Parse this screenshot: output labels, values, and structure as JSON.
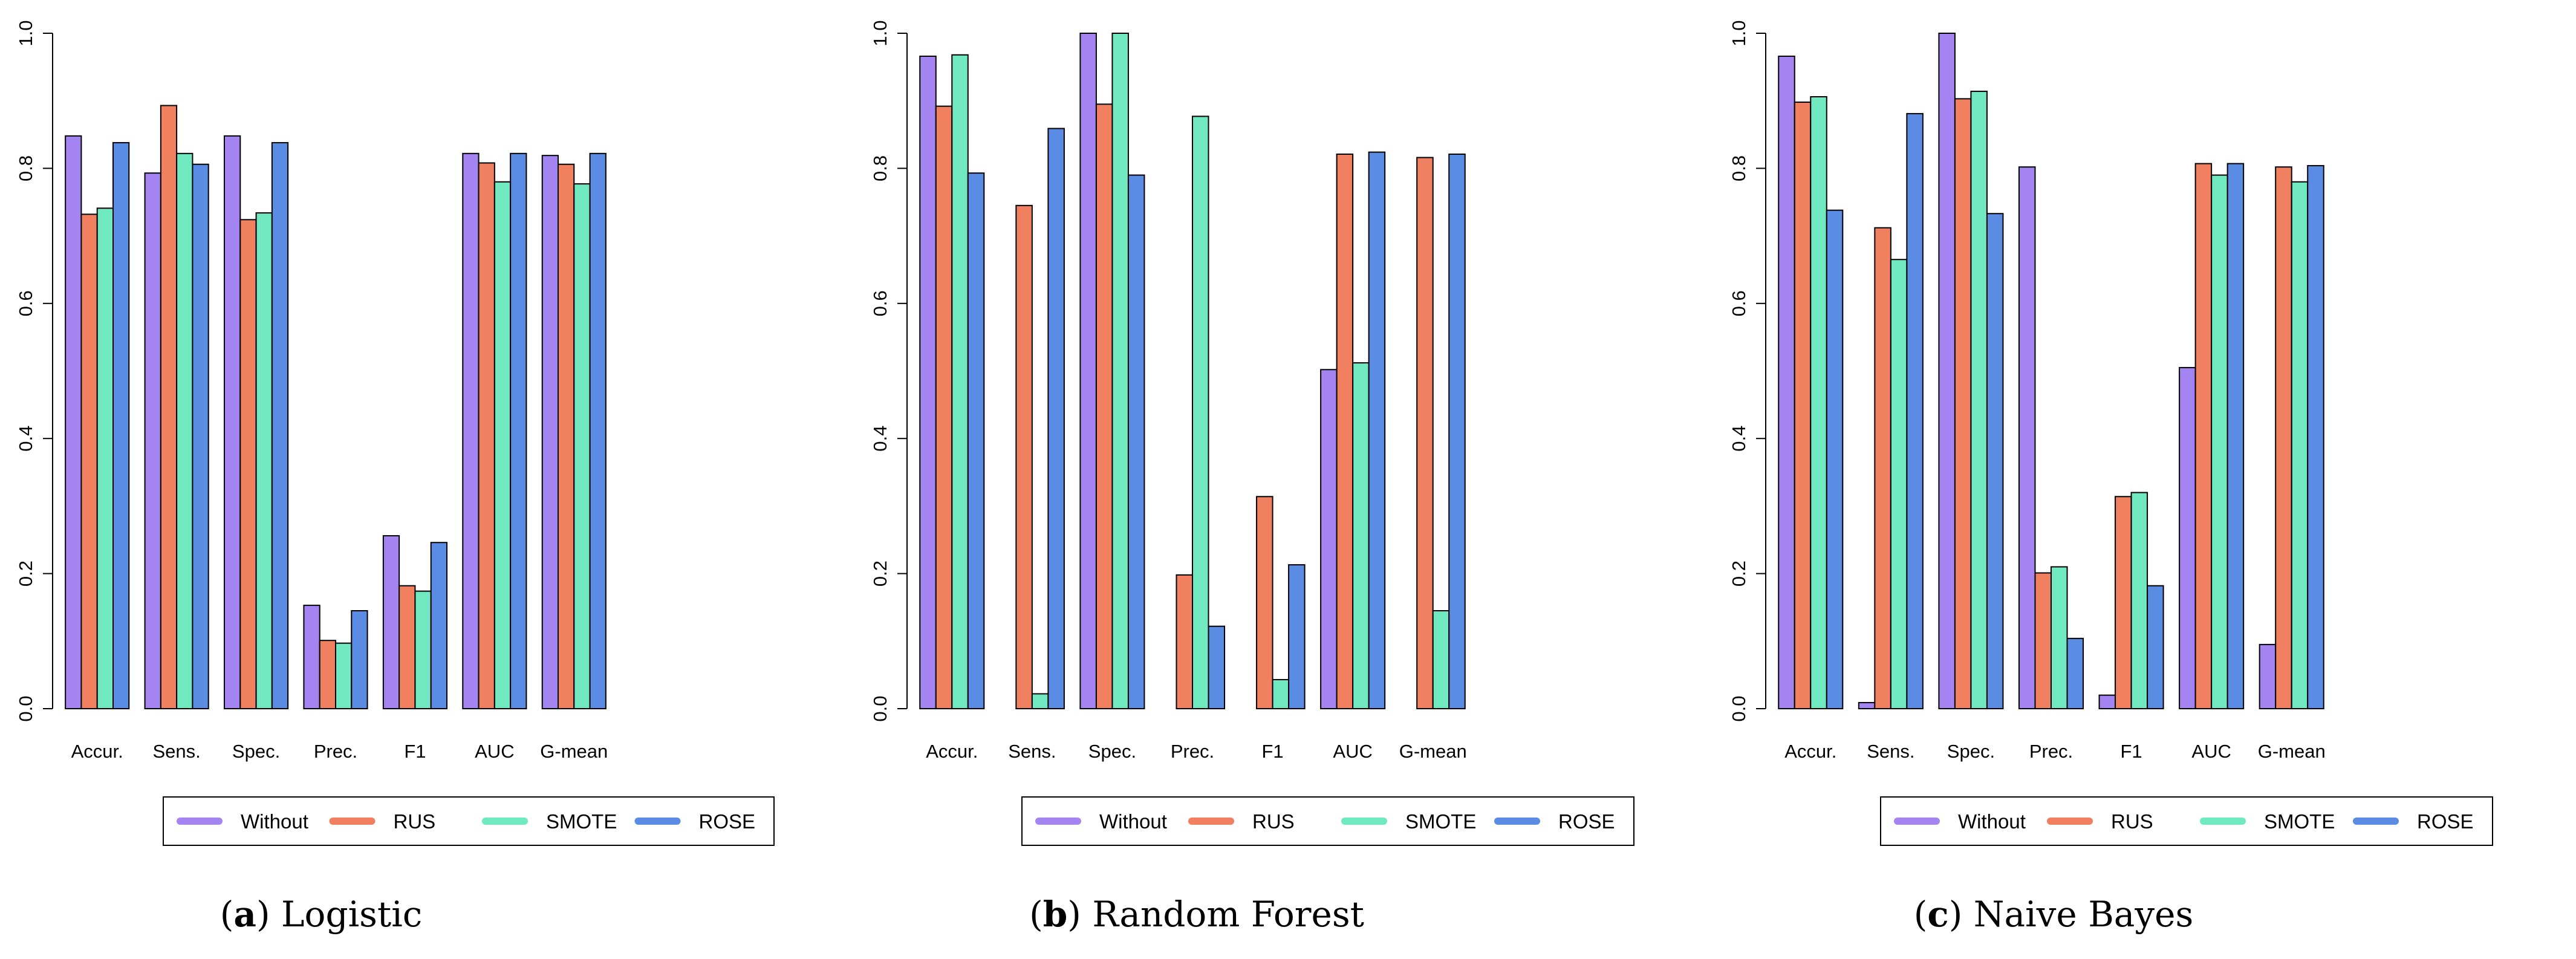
{
  "figure": {
    "series_colors": {
      "Without": "#A484F0",
      "RUS": "#F08060",
      "SMOTE": "#70E8C0",
      "ROSE": "#5B8CE3"
    },
    "axis_color": "#000000"
  },
  "chart_data": [
    {
      "type": "bar",
      "title": "Logistic",
      "caption": {
        "letter": "a",
        "text": "Logistic"
      },
      "xlabel": "",
      "ylabel": "",
      "ylim": [
        0,
        1
      ],
      "yticks": [
        "0.0",
        "0.2",
        "0.4",
        "0.6",
        "0.8",
        "1.0"
      ],
      "ytick_values": [
        0,
        0.2,
        0.4,
        0.6,
        0.8,
        1.0
      ],
      "grid": false,
      "legend_position": "bottom",
      "categories": [
        "Accur.",
        "Sens.",
        "Spec.",
        "Prec.",
        "F1",
        "AUC",
        "G-mean"
      ],
      "series": [
        {
          "name": "Without",
          "values": [
            0.848,
            0.793,
            0.848,
            0.153,
            0.256,
            0.822,
            0.819
          ]
        },
        {
          "name": "RUS",
          "values": [
            0.732,
            0.893,
            0.724,
            0.101,
            0.182,
            0.808,
            0.806
          ]
        },
        {
          "name": "SMOTE",
          "values": [
            0.741,
            0.822,
            0.734,
            0.097,
            0.174,
            0.78,
            0.777
          ]
        },
        {
          "name": "ROSE",
          "values": [
            0.838,
            0.806,
            0.838,
            0.145,
            0.246,
            0.822,
            0.822
          ]
        }
      ]
    },
    {
      "type": "bar",
      "title": "Random Forest",
      "caption": {
        "letter": "b",
        "text": "Random Forest"
      },
      "xlabel": "",
      "ylabel": "",
      "ylim": [
        0,
        1
      ],
      "yticks": [
        "0.0",
        "0.2",
        "0.4",
        "0.6",
        "0.8",
        "1.0"
      ],
      "ytick_values": [
        0,
        0.2,
        0.4,
        0.6,
        0.8,
        1.0
      ],
      "grid": false,
      "legend_position": "bottom",
      "categories": [
        "Accur.",
        "Sens.",
        "Spec.",
        "Prec.",
        "F1",
        "AUC",
        "G-mean"
      ],
      "series": [
        {
          "name": "Without",
          "values": [
            0.966,
            0.0,
            1.0,
            0.0,
            0.0,
            0.502,
            0.0
          ]
        },
        {
          "name": "RUS",
          "values": [
            0.892,
            0.745,
            0.895,
            0.198,
            0.314,
            0.821,
            0.816
          ]
        },
        {
          "name": "SMOTE",
          "values": [
            0.968,
            0.022,
            1.0,
            0.877,
            0.043,
            0.512,
            0.145
          ]
        },
        {
          "name": "ROSE",
          "values": [
            0.793,
            0.859,
            0.79,
            0.122,
            0.213,
            0.824,
            0.821
          ]
        }
      ]
    },
    {
      "type": "bar",
      "title": "Naive Bayes",
      "caption": {
        "letter": "c",
        "text": "Naive Bayes"
      },
      "xlabel": "",
      "ylabel": "",
      "ylim": [
        0,
        1
      ],
      "yticks": [
        "0.0",
        "0.2",
        "0.4",
        "0.6",
        "0.8",
        "1.0"
      ],
      "ytick_values": [
        0,
        0.2,
        0.4,
        0.6,
        0.8,
        1.0
      ],
      "grid": false,
      "legend_position": "bottom",
      "categories": [
        "Accur.",
        "Sens.",
        "Spec.",
        "Prec.",
        "F1",
        "AUC",
        "G-mean"
      ],
      "series": [
        {
          "name": "Without",
          "values": [
            0.966,
            0.009,
            1.0,
            0.802,
            0.02,
            0.505,
            0.095
          ]
        },
        {
          "name": "RUS",
          "values": [
            0.898,
            0.712,
            0.903,
            0.201,
            0.314,
            0.807,
            0.802
          ]
        },
        {
          "name": "SMOTE",
          "values": [
            0.906,
            0.665,
            0.914,
            0.21,
            0.32,
            0.79,
            0.78
          ]
        },
        {
          "name": "ROSE",
          "values": [
            0.738,
            0.881,
            0.733,
            0.104,
            0.182,
            0.807,
            0.804
          ]
        }
      ]
    }
  ]
}
